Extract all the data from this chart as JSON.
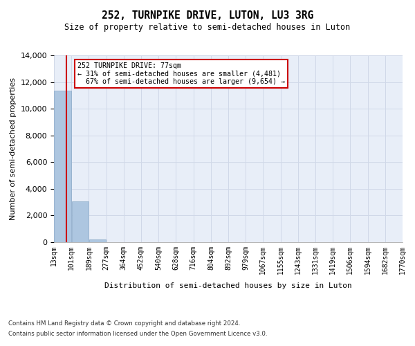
{
  "title": "252, TURNPIKE DRIVE, LUTON, LU3 3RG",
  "subtitle": "Size of property relative to semi-detached houses in Luton",
  "xlabel": "Distribution of semi-detached houses by size in Luton",
  "ylabel": "Number of semi-detached properties",
  "property_size": 77,
  "property_label": "252 TURNPIKE DRIVE: 77sqm",
  "pct_smaller": 31,
  "pct_larger": 67,
  "n_smaller": 4481,
  "n_larger": 9654,
  "bar_color": "#adc6e0",
  "bar_edge_color": "#adc6e0",
  "red_line_color": "#cc0000",
  "annotation_box_color": "#cc0000",
  "grid_color": "#d0d8e8",
  "background_color": "#e8eef8",
  "bin_edges": [
    13,
    101,
    189,
    277,
    364,
    452,
    540,
    628,
    716,
    804,
    892,
    979,
    1067,
    1155,
    1243,
    1331,
    1419,
    1506,
    1594,
    1682,
    1770
  ],
  "bin_labels": [
    "13sqm",
    "101sqm",
    "189sqm",
    "277sqm",
    "364sqm",
    "452sqm",
    "540sqm",
    "628sqm",
    "716sqm",
    "804sqm",
    "892sqm",
    "979sqm",
    "1067sqm",
    "1155sqm",
    "1243sqm",
    "1331sqm",
    "1419sqm",
    "1506sqm",
    "1594sqm",
    "1682sqm",
    "1770sqm"
  ],
  "bar_heights": [
    11350,
    3050,
    200,
    0,
    0,
    0,
    0,
    0,
    0,
    0,
    0,
    0,
    0,
    0,
    0,
    0,
    0,
    0,
    0,
    0
  ],
  "ylim": [
    0,
    14000
  ],
  "yticks": [
    0,
    2000,
    4000,
    6000,
    8000,
    10000,
    12000,
    14000
  ],
  "footer_line1": "Contains HM Land Registry data © Crown copyright and database right 2024.",
  "footer_line2": "Contains public sector information licensed under the Open Government Licence v3.0."
}
